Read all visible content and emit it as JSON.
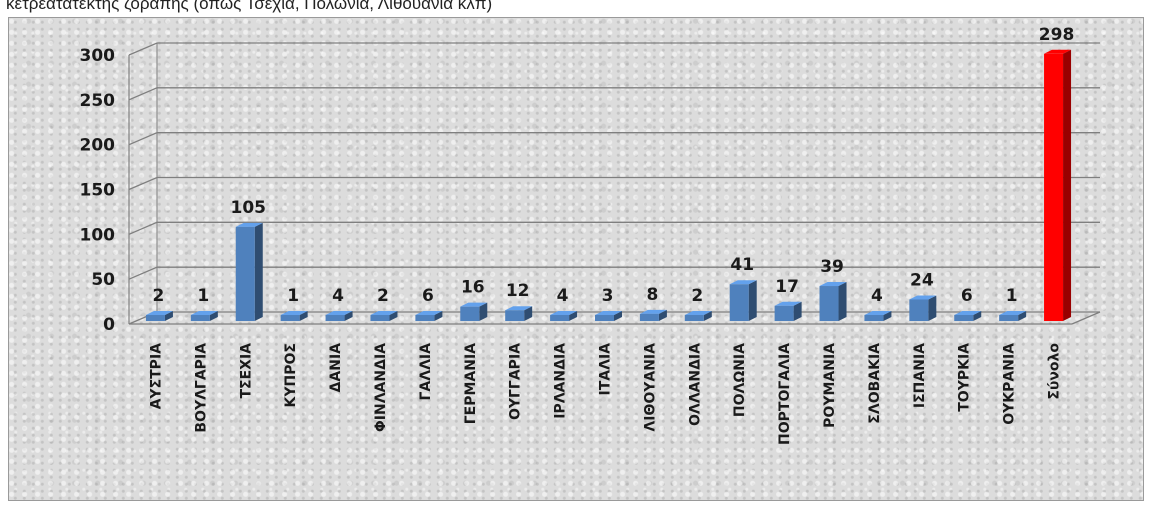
{
  "caption": "κετρεατάτεκτης ζοραπης (όπως Τσεχία, Πολωνία, Λιθουανία κλπ)",
  "colors": {
    "bar": "#4f81bd",
    "total_bar": "#ff0000",
    "grid": "#7f7f7f",
    "background": "#dcdcdc"
  },
  "chart_data": {
    "type": "bar",
    "title": "",
    "xlabel": "",
    "ylabel": "",
    "ylim": [
      0,
      300
    ],
    "yticks": [
      0,
      50,
      100,
      150,
      200,
      250,
      300
    ],
    "grid": true,
    "categories": [
      "ΑΥΣΤΡΙΑ",
      "ΒΟΥΛΓΑΡΙΑ",
      "ΤΣΕΧΙΑ",
      "ΚΥΠΡΟΣ",
      "ΔΑΝΙΑ",
      "ΦΙΝΛΑΝΔΙΑ",
      "ΓΑΛΛΙΑ",
      "ΓΕΡΜΑΝΙΑ",
      "ΟΥΓΓΑΡΙΑ",
      "ΙΡΛΑΝΔΙΑ",
      "ΙΤΑΛΙΑ",
      "ΛΙΘΟΥΑΝΙΑ",
      "ΟΛΛΑΝΔΙΑ",
      "ΠΟΛΩΝΙΑ",
      "ΠΟΡΤΟΓΑΛΙΑ",
      "ΡΟΥΜΑΝΙΑ",
      "ΣΛΟΒΑΚΙΑ",
      "ΙΣΠΑΝΙΑ",
      "ΤΟΥΡΚΙΑ",
      "ΟΥΚΡΑΝΙΑ",
      "Σύνολο"
    ],
    "values": [
      2,
      1,
      105,
      1,
      4,
      2,
      6,
      16,
      12,
      4,
      3,
      8,
      2,
      41,
      17,
      39,
      4,
      24,
      6,
      1,
      298
    ],
    "highlight_index": 20
  }
}
